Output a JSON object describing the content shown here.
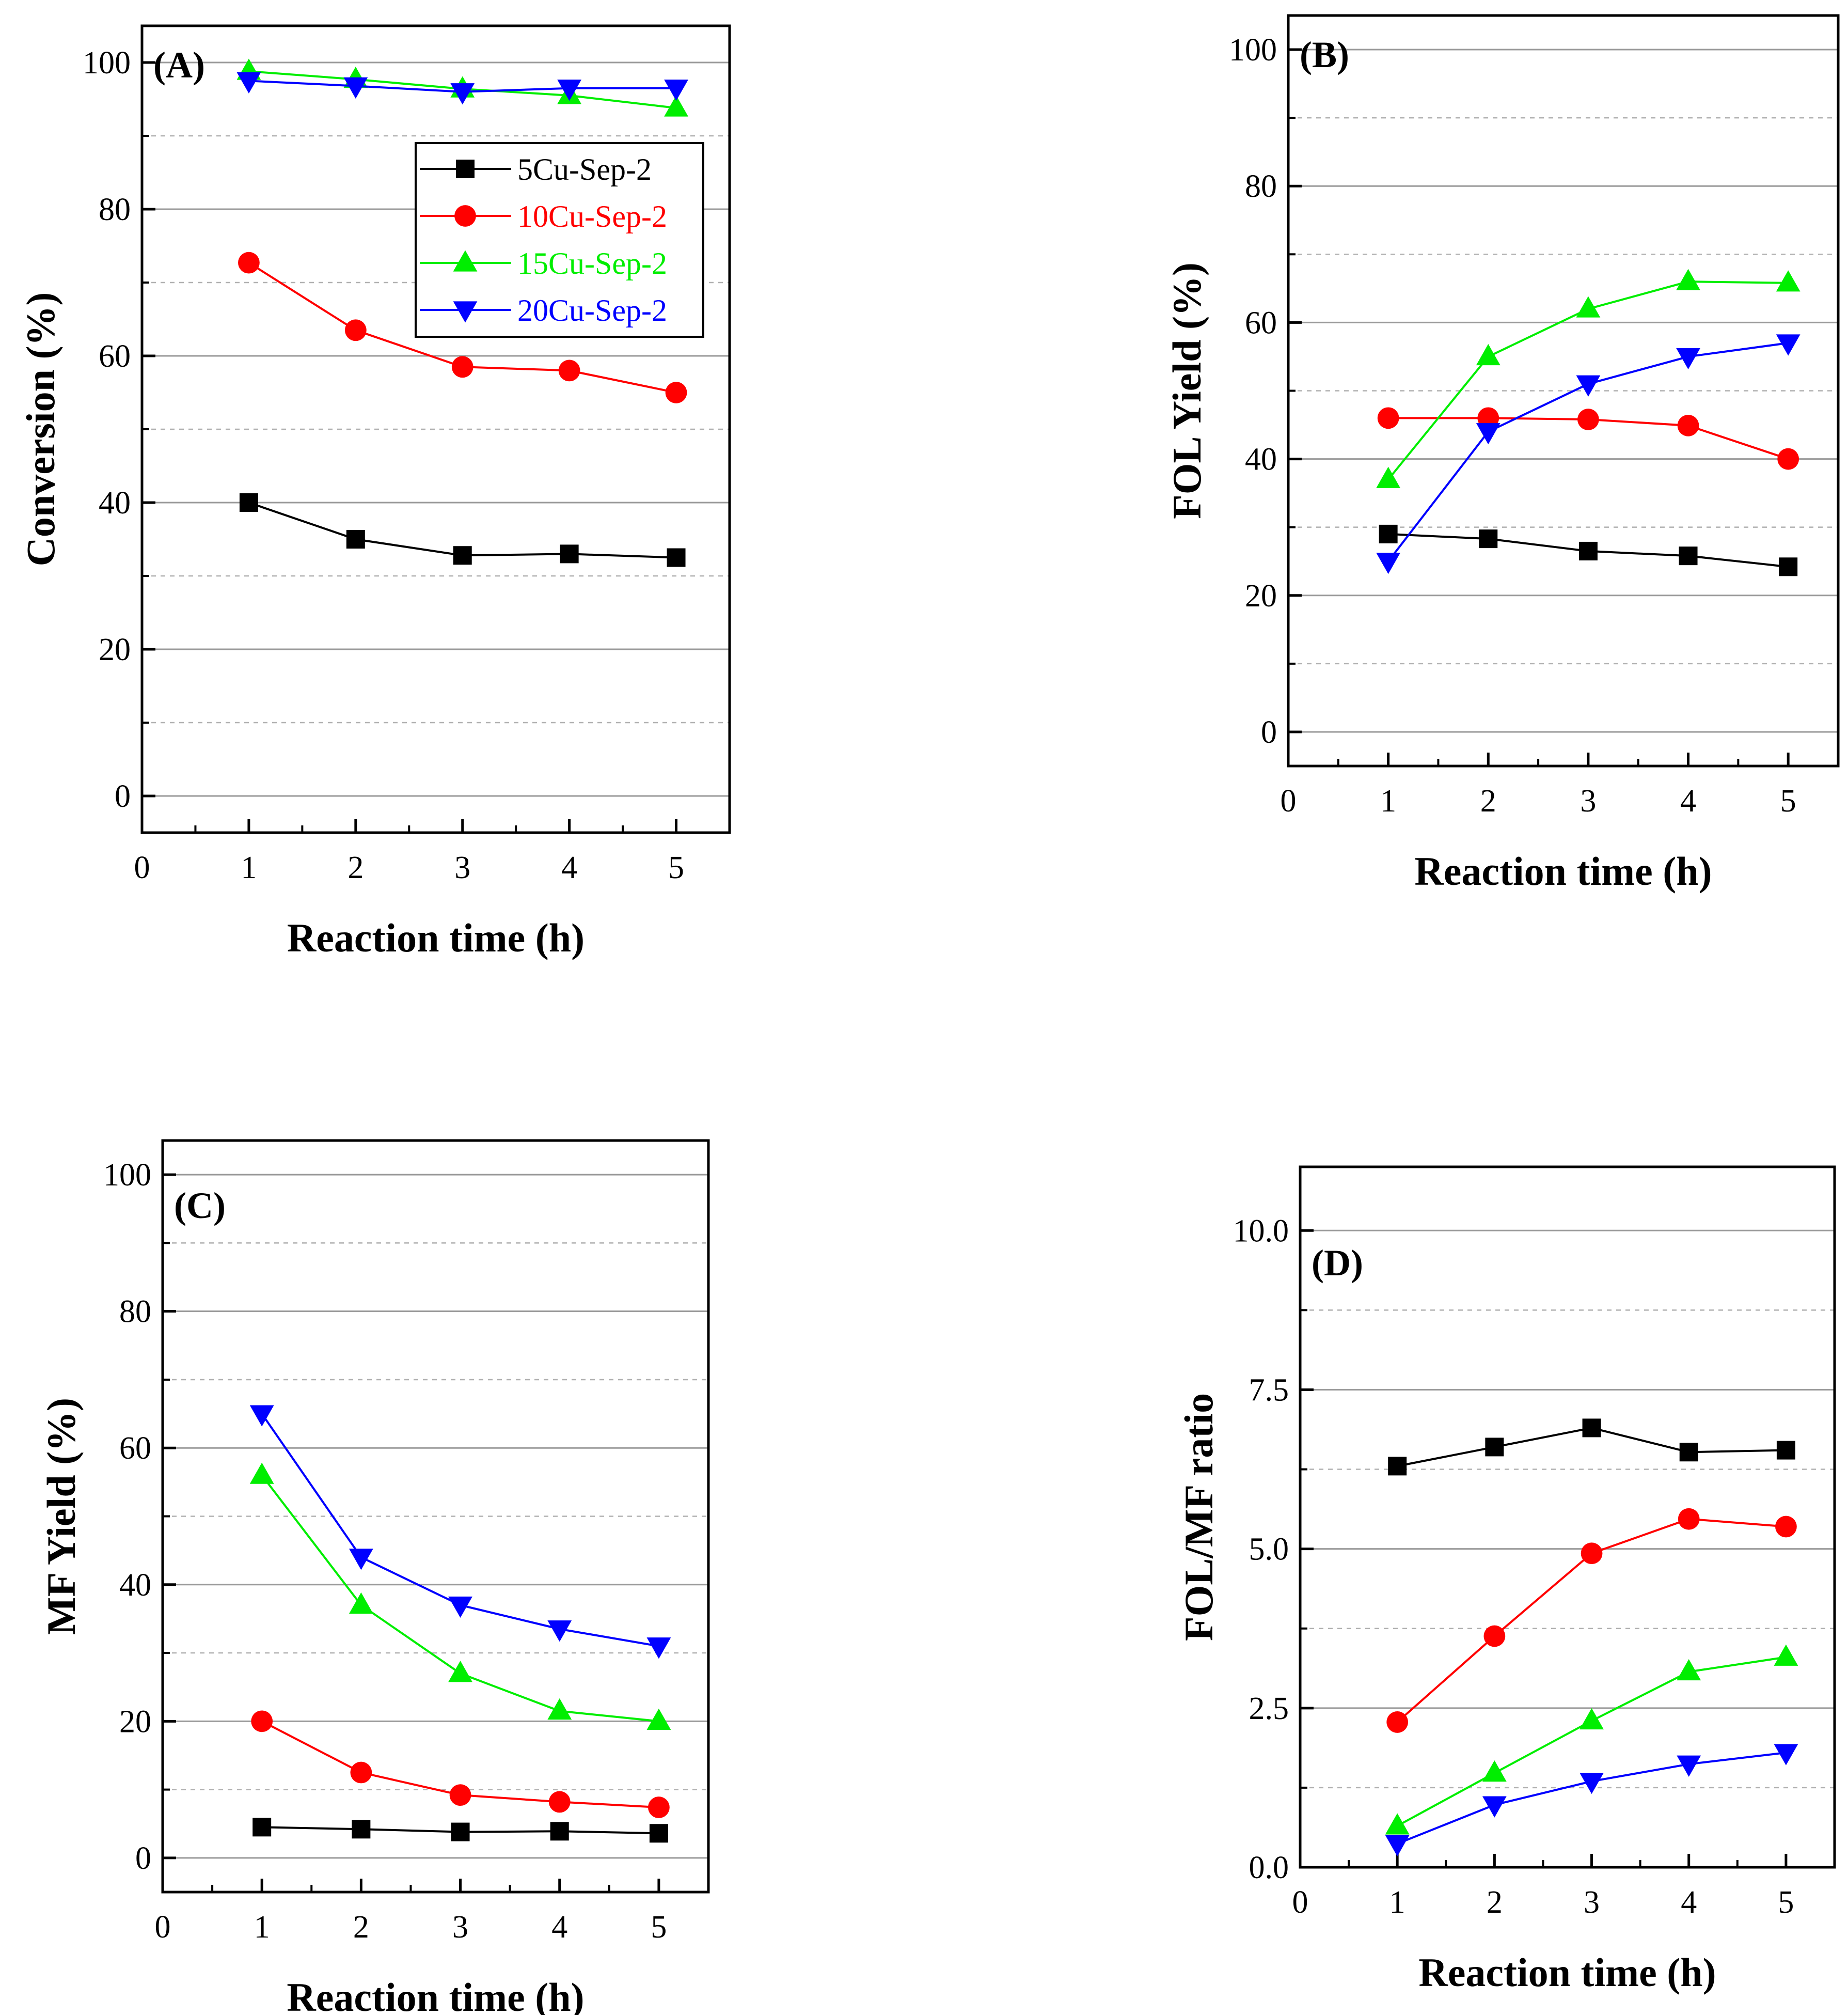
{
  "chart_data": [
    {
      "panel": "(A)",
      "type": "line",
      "xlabel": "Reaction time (h)",
      "ylabel": "Conversion (%)",
      "xlim": [
        0,
        5.5
      ],
      "ylim": [
        -5,
        105
      ],
      "xticks": [
        0,
        1,
        2,
        3,
        4,
        5
      ],
      "yticks": [
        0,
        20,
        40,
        60,
        80,
        100
      ],
      "grid": true,
      "legend_position": "top-right",
      "x": [
        1,
        2,
        3,
        4,
        5
      ],
      "series": [
        {
          "name": "5Cu-Sep-2",
          "color": "#000000",
          "marker": "square",
          "values": [
            40.0,
            35.0,
            32.8,
            33.0,
            32.5
          ]
        },
        {
          "name": "10Cu-Sep-2",
          "color": "#ff0000",
          "marker": "circle",
          "values": [
            72.7,
            63.5,
            58.5,
            58.0,
            55.0
          ]
        },
        {
          "name": "15Cu-Sep-2",
          "color": "#00ee00",
          "marker": "triangle-up",
          "values": [
            98.8,
            97.7,
            96.4,
            95.5,
            93.8
          ]
        },
        {
          "name": "20Cu-Sep-2",
          "color": "#0000ff",
          "marker": "triangle-down",
          "values": [
            97.5,
            96.8,
            96.0,
            96.5,
            96.5
          ]
        }
      ]
    },
    {
      "panel": "(B)",
      "type": "line",
      "xlabel": "Reaction time (h)",
      "ylabel": "FOL Yield (%)",
      "xlim": [
        0,
        5.5
      ],
      "ylim": [
        -5,
        105
      ],
      "xticks": [
        0,
        1,
        2,
        3,
        4,
        5
      ],
      "yticks": [
        0,
        20,
        40,
        60,
        80,
        100
      ],
      "grid": true,
      "x": [
        1,
        2,
        3,
        4,
        5
      ],
      "series": [
        {
          "name": "5Cu-Sep-2",
          "color": "#000000",
          "marker": "square",
          "values": [
            29.0,
            28.3,
            26.5,
            25.8,
            24.2
          ]
        },
        {
          "name": "10Cu-Sep-2",
          "color": "#ff0000",
          "marker": "circle",
          "values": [
            46.0,
            46.0,
            45.8,
            44.9,
            40.0
          ]
        },
        {
          "name": "15Cu-Sep-2",
          "color": "#00ee00",
          "marker": "triangle-up",
          "values": [
            37.0,
            55.0,
            62.0,
            66.0,
            65.8
          ]
        },
        {
          "name": "20Cu-Sep-2",
          "color": "#0000ff",
          "marker": "triangle-down",
          "values": [
            25.0,
            44.0,
            51.0,
            55.0,
            57.0
          ]
        }
      ]
    },
    {
      "panel": "(C)",
      "type": "line",
      "xlabel": "Reaction time (h)",
      "ylabel": "MF Yield (%)",
      "xlim": [
        0,
        5.5
      ],
      "ylim": [
        -5,
        105
      ],
      "xticks": [
        0,
        1,
        2,
        3,
        4,
        5
      ],
      "yticks": [
        0,
        20,
        40,
        60,
        80,
        100
      ],
      "grid": true,
      "x": [
        1,
        2,
        3,
        4,
        5
      ],
      "series": [
        {
          "name": "5Cu-Sep-2",
          "color": "#000000",
          "marker": "square",
          "values": [
            4.5,
            4.2,
            3.8,
            3.9,
            3.6
          ]
        },
        {
          "name": "10Cu-Sep-2",
          "color": "#ff0000",
          "marker": "circle",
          "values": [
            20.0,
            12.5,
            9.2,
            8.2,
            7.4
          ]
        },
        {
          "name": "15Cu-Sep-2",
          "color": "#00ee00",
          "marker": "triangle-up",
          "values": [
            56.0,
            37.0,
            27.0,
            21.5,
            20.0
          ]
        },
        {
          "name": "20Cu-Sep-2",
          "color": "#0000ff",
          "marker": "triangle-down",
          "values": [
            65.0,
            44.0,
            37.0,
            33.5,
            31.0
          ]
        }
      ]
    },
    {
      "panel": "(D)",
      "type": "line",
      "xlabel": "Reaction time (h)",
      "ylabel": "FOL/MF ratio",
      "xlim": [
        0,
        5.5
      ],
      "ylim": [
        0,
        11
      ],
      "xticks": [
        0,
        1,
        2,
        3,
        4,
        5
      ],
      "yticks": [
        0,
        2.5,
        5,
        7.5,
        10
      ],
      "ytick_labels": [
        "0.0",
        "2.5",
        "5.0",
        "7.5",
        "10.0"
      ],
      "grid": true,
      "x": [
        1,
        2,
        3,
        4,
        5
      ],
      "series": [
        {
          "name": "5Cu-Sep-2",
          "color": "#000000",
          "marker": "square",
          "values": [
            6.3,
            6.6,
            6.9,
            6.52,
            6.55
          ]
        },
        {
          "name": "10Cu-Sep-2",
          "color": "#ff0000",
          "marker": "circle",
          "values": [
            2.28,
            3.63,
            4.93,
            5.47,
            5.35
          ]
        },
        {
          "name": "15Cu-Sep-2",
          "color": "#00ee00",
          "marker": "triangle-up",
          "values": [
            0.65,
            1.48,
            2.3,
            3.07,
            3.3
          ]
        },
        {
          "name": "20Cu-Sep-2",
          "color": "#0000ff",
          "marker": "triangle-down",
          "values": [
            0.37,
            0.98,
            1.35,
            1.62,
            1.8
          ]
        }
      ]
    }
  ]
}
